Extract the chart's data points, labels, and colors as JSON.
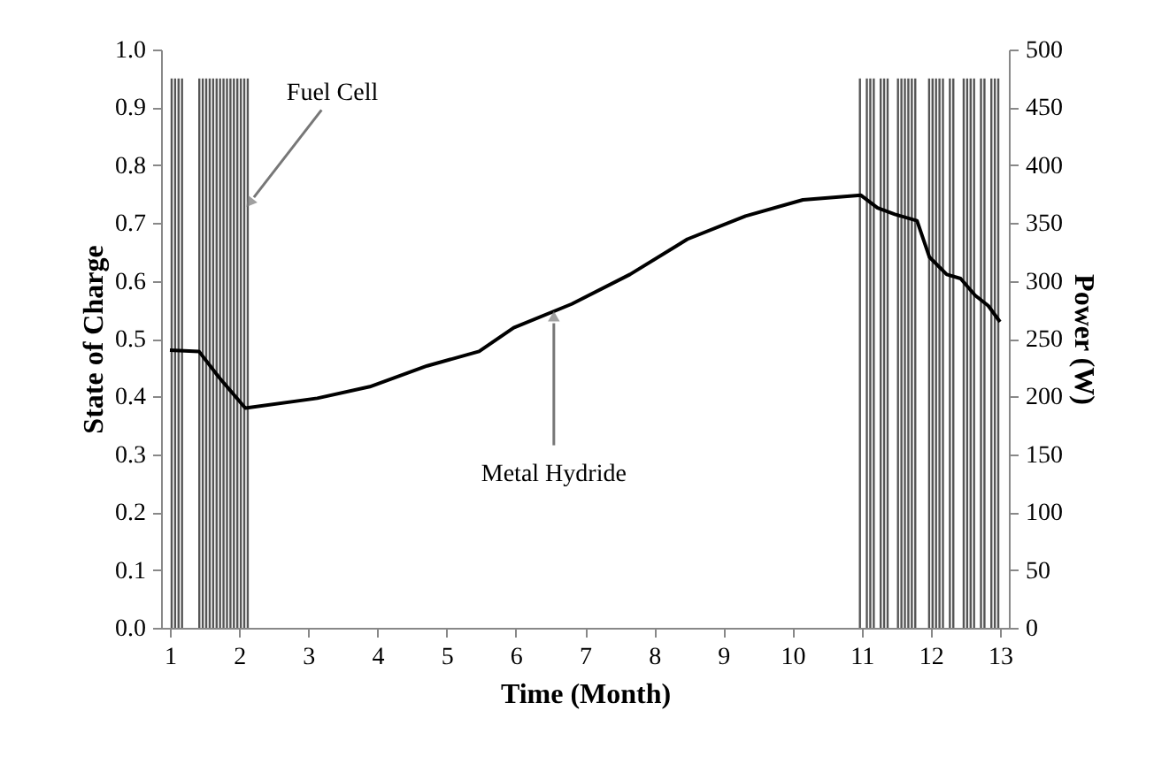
{
  "chart_data": {
    "type": "bar",
    "xlabel": "Time (Month)",
    "ylabel": "State of Charge",
    "y2label": "Power (W)",
    "xlim": [
      1,
      13
    ],
    "xticks": [
      1,
      2,
      3,
      4,
      5,
      6,
      7,
      8,
      9,
      10,
      11,
      12,
      13
    ],
    "ylim": [
      0,
      1
    ],
    "yticks": [
      {
        "value": 0,
        "label": "0.0"
      },
      0.1,
      0.2,
      0.3,
      0.4,
      0.5,
      0.6,
      0.7,
      0.8,
      0.9,
      {
        "value": 1,
        "label": "1.0"
      }
    ],
    "y2lim": [
      0,
      500
    ],
    "y2ticks": [
      0,
      50,
      100,
      150,
      200,
      250,
      300,
      350,
      400,
      450,
      500
    ],
    "grid": false,
    "series": [
      {
        "axis": "y2",
        "color": "#555555",
        "x": [
          1.025,
          1.075,
          1.125,
          1.175,
          1.425,
          1.475,
          1.525,
          1.575,
          1.625,
          1.675,
          1.725,
          1.775,
          1.825,
          1.875,
          1.925,
          1.975,
          2.025,
          2.075,
          2.125,
          10.975,
          11.075,
          11.125,
          11.175,
          11.275,
          11.325,
          11.375,
          11.525,
          11.575,
          11.625,
          11.675,
          11.725,
          11.775,
          11.975,
          12.025,
          12.075,
          12.125,
          12.175,
          12.275,
          12.325,
          12.475,
          12.525,
          12.575,
          12.625,
          12.725,
          12.775,
          12.875,
          12.925,
          12.975
        ],
        "values": [
          475,
          475,
          475,
          475,
          475,
          475,
          475,
          475,
          475,
          475,
          475,
          475,
          475,
          475,
          475,
          475,
          475,
          475,
          475,
          475,
          475,
          475,
          475,
          475,
          475,
          475,
          475,
          475,
          475,
          475,
          475,
          475,
          475,
          475,
          475,
          475,
          475,
          475,
          475,
          475,
          475,
          475,
          475,
          475,
          475,
          475,
          475,
          475
        ]
      },
      {
        "type": "line",
        "color": "#000000",
        "x": [
          1.0,
          1.42,
          1.71,
          2.09,
          3.13,
          3.89,
          4.72,
          5.47,
          5.97,
          6.81,
          7.65,
          8.48,
          9.32,
          10.15,
          10.99,
          11.23,
          11.48,
          11.8,
          11.98,
          12.23,
          12.43,
          12.64,
          12.83,
          13.0
        ],
        "values": [
          0.48,
          0.478,
          0.433,
          0.38,
          0.397,
          0.417,
          0.453,
          0.478,
          0.519,
          0.56,
          0.611,
          0.672,
          0.712,
          0.74,
          0.748,
          0.726,
          0.715,
          0.704,
          0.641,
          0.611,
          0.604,
          0.575,
          0.557,
          0.529
        ]
      }
    ],
    "annotations": [
      {
        "text": "Fuel Cell",
        "x": 2.12,
        "y": 0.73
      },
      {
        "text": "Metal Hydride",
        "x": 6.55,
        "y": 0.545
      }
    ]
  }
}
